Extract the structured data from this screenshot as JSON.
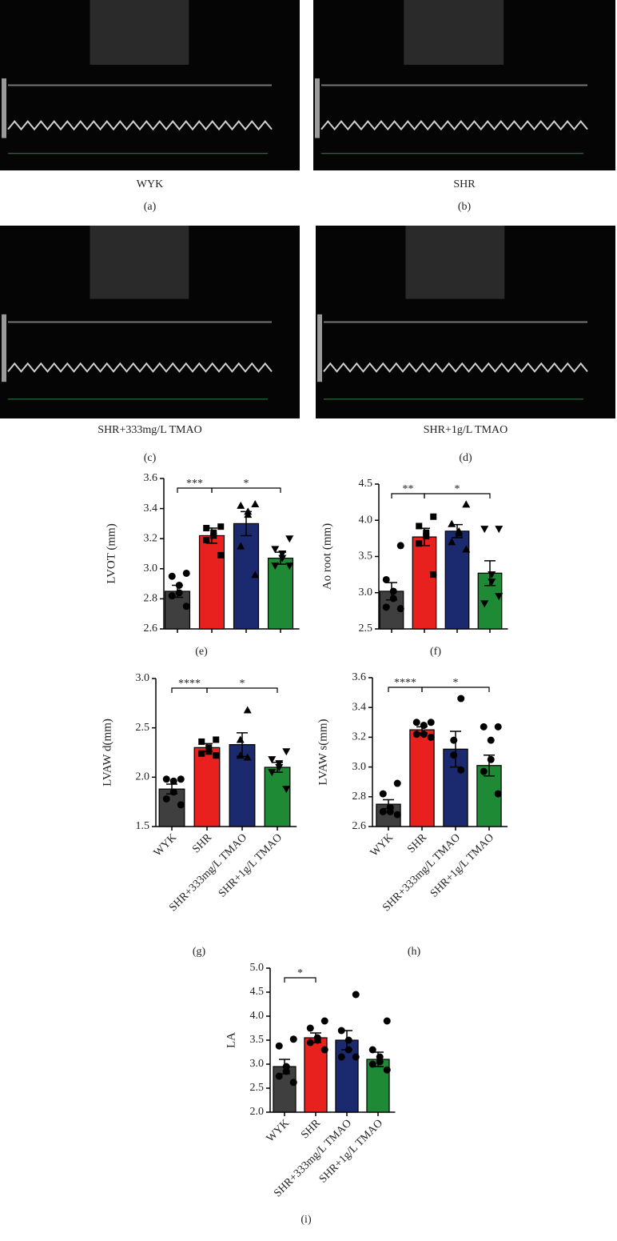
{
  "image_panels": [
    {
      "caption": "WYK",
      "tag": "(a)"
    },
    {
      "caption": "SHR",
      "tag": "(b)"
    },
    {
      "caption": "SHR+333mg/L TMAO",
      "tag": "(c)"
    },
    {
      "caption": "SHR+1g/L TMAO",
      "tag": "(d)"
    }
  ],
  "chart_data": [
    {
      "type": "bar",
      "tag": "(e)",
      "ylabel": "LVOT (mm)",
      "categories": [
        null,
        null,
        null,
        null
      ],
      "colors": [
        "#3f3f3f",
        "#e8211f",
        "#1b2a6e",
        "#1f8a35"
      ],
      "markers": [
        "circle",
        "square",
        "triangle-up",
        "triangle-down"
      ],
      "values": [
        2.85,
        3.22,
        3.3,
        3.07
      ],
      "errors": [
        0.04,
        0.05,
        0.08,
        0.04
      ],
      "points": [
        [
          2.97,
          2.95,
          2.89,
          2.84,
          2.82,
          2.75
        ],
        [
          3.28,
          3.27,
          3.24,
          3.22,
          3.19,
          3.09
        ],
        [
          3.43,
          3.42,
          3.38,
          3.36,
          3.15,
          2.96
        ],
        [
          3.2,
          3.13,
          3.1,
          3.07,
          3.02,
          3.02
        ]
      ],
      "ylim": [
        2.6,
        3.6
      ],
      "yticks": [
        2.6,
        2.8,
        {
          "value": 3,
          "label": "3.0"
        },
        3.2,
        3.4,
        3.6
      ],
      "annotations": [
        {
          "text": "***",
          "from": 0,
          "to": 1
        },
        {
          "text": "*",
          "from": 1,
          "to": 3
        }
      ]
    },
    {
      "type": "bar",
      "tag": "(f)",
      "ylabel": "Ao root (mm)",
      "categories": [
        null,
        null,
        null,
        null
      ],
      "colors": [
        "#3f3f3f",
        "#e8211f",
        "#1b2a6e",
        "#1f8a35"
      ],
      "markers": [
        "circle",
        "square",
        "triangle-up",
        "triangle-down"
      ],
      "values": [
        3.02,
        3.77,
        3.85,
        3.27
      ],
      "errors": [
        0.12,
        0.12,
        0.09,
        0.17
      ],
      "points": [
        [
          3.65,
          3.18,
          3.02,
          2.92,
          2.8,
          2.78
        ],
        [
          4.05,
          3.92,
          3.83,
          3.78,
          3.68,
          3.25
        ],
        [
          4.22,
          3.95,
          3.85,
          3.82,
          3.7,
          3.6
        ],
        [
          3.88,
          3.88,
          3.25,
          3.15,
          2.85,
          2.95
        ]
      ],
      "ylim": [
        2.5,
        4.5
      ],
      "yticks": [
        2.5,
        {
          "value": 3,
          "label": "3.0"
        },
        3.5,
        {
          "value": 4,
          "label": "4.0"
        },
        4.5
      ],
      "annotations": [
        {
          "text": "**",
          "from": 0,
          "to": 1
        },
        {
          "text": "*",
          "from": 1,
          "to": 3
        }
      ]
    },
    {
      "type": "bar",
      "tag": "(g)",
      "ylabel": "LVAW d(mm)",
      "categories": [
        "WYK",
        "SHR",
        "SHR+333mg/L TMAO",
        "SHR+1g/L TMAO"
      ],
      "colors": [
        "#3f3f3f",
        "#e8211f",
        "#1b2a6e",
        "#1f8a35"
      ],
      "markers": [
        "circle",
        "square",
        "triangle-up",
        "triangle-down"
      ],
      "values": [
        1.88,
        2.3,
        2.33,
        2.1
      ],
      "errors": [
        0.05,
        0.04,
        0.12,
        0.05
      ],
      "points": [
        [
          1.98,
          1.98,
          1.96,
          1.85,
          1.78,
          1.72
        ],
        [
          2.38,
          2.36,
          2.3,
          2.26,
          2.24,
          2.22
        ],
        [
          2.68,
          2.38,
          2.22,
          2.2
        ],
        [
          2.26,
          2.18,
          2.14,
          2.1,
          2.05,
          1.88
        ]
      ],
      "ylim": [
        1.5,
        3
      ],
      "yticks": [
        1.5,
        {
          "value": 2,
          "label": "2.0"
        },
        2.5,
        {
          "value": 3,
          "label": "3.0"
        }
      ],
      "annotations": [
        {
          "text": "****",
          "from": 0,
          "to": 1
        },
        {
          "text": "*",
          "from": 1,
          "to": 3
        }
      ]
    },
    {
      "type": "bar",
      "tag": "(h)",
      "ylabel": "LVAW s(mm)",
      "categories": [
        "WYK",
        "SHR",
        "SHR+333mg/L TMAO",
        "SHR+1g/L TMAO"
      ],
      "colors": [
        "#3f3f3f",
        "#e8211f",
        "#1b2a6e",
        "#1f8a35"
      ],
      "markers": [
        "circle",
        "circle",
        "circle",
        "circle"
      ],
      "values": [
        2.75,
        3.25,
        3.12,
        3.01
      ],
      "errors": [
        0.03,
        0.02,
        0.12,
        0.07
      ],
      "points": [
        [
          2.89,
          2.82,
          2.73,
          2.7,
          2.7,
          2.68
        ],
        [
          3.3,
          3.3,
          3.28,
          3.22,
          3.22,
          3.2
        ],
        [
          3.46,
          3.18,
          3.08,
          2.98
        ],
        [
          3.27,
          3.27,
          3.18,
          3.05,
          2.97,
          2.82
        ]
      ],
      "ylim": [
        2.6,
        3.6
      ],
      "yticks": [
        2.6,
        2.8,
        {
          "value": 3,
          "label": "3.0"
        },
        3.2,
        3.4,
        3.6
      ],
      "annotations": [
        {
          "text": "****",
          "from": 0,
          "to": 1
        },
        {
          "text": "*",
          "from": 1,
          "to": 3
        }
      ]
    },
    {
      "type": "bar",
      "tag": "(i)",
      "ylabel": "LA",
      "categories": [
        "WYK",
        "SHR",
        "SHR+333mg/L TMAO",
        "SHR+1g/L TMAO"
      ],
      "colors": [
        "#3f3f3f",
        "#e8211f",
        "#1b2a6e",
        "#1f8a35"
      ],
      "markers": [
        "circle",
        "circle",
        "circle",
        "circle"
      ],
      "values": [
        2.95,
        3.55,
        3.5,
        3.1
      ],
      "errors": [
        0.15,
        0.1,
        0.2,
        0.15
      ],
      "points": [
        [
          3.52,
          3.38,
          2.95,
          2.85,
          2.75,
          2.62
        ],
        [
          3.9,
          3.75,
          3.55,
          3.5,
          3.45,
          3.3
        ],
        [
          4.45,
          3.7,
          3.5,
          3.3,
          3.15,
          3.15
        ],
        [
          3.9,
          3.3,
          3.15,
          3.05,
          3.0,
          2.88
        ]
      ],
      "ylim": [
        2,
        5
      ],
      "yticks": [
        {
          "value": 2,
          "label": "2.0"
        },
        2.5,
        {
          "value": 3,
          "label": "3.0"
        },
        3.5,
        {
          "value": 4,
          "label": "4.0"
        },
        4.5,
        {
          "value": 5,
          "label": "5.0"
        }
      ],
      "annotations": [
        {
          "text": "*",
          "from": 0,
          "to": 1
        }
      ]
    }
  ]
}
